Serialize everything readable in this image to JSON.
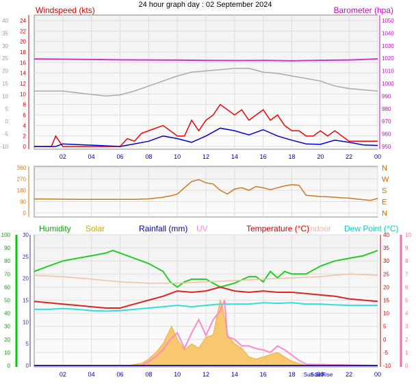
{
  "title": "24 hour graph day : 02 September 2024",
  "chart_data": [
    {
      "type": "line",
      "panel": "wind-baro",
      "labels": {
        "windspeed": "Windspeed (kts)",
        "barometer": "Barometer (hpa)"
      },
      "x_ticks": [
        "02",
        "04",
        "06",
        "08",
        "10",
        "12",
        "14",
        "16",
        "18",
        "20",
        "22",
        "00"
      ],
      "grid": true,
      "axes": {
        "left_outer": {
          "ticks": [
            "-10",
            "-5",
            "0",
            "5",
            "10",
            "15",
            "20",
            "25",
            "30",
            "35",
            "40"
          ],
          "color": "#999999"
        },
        "left_inner": {
          "ticks": [
            "0",
            "2",
            "4",
            "6",
            "8",
            "10",
            "12",
            "14",
            "16",
            "18",
            "20",
            "22",
            "24"
          ],
          "ylim": [
            0,
            24
          ],
          "color": "#cc0000"
        },
        "right": {
          "ticks": [
            "950",
            "960",
            "970",
            "980",
            "990",
            "1000",
            "1010",
            "1020",
            "1030",
            "1040",
            "1050"
          ],
          "ylim": [
            950,
            1050
          ],
          "color": "#cc00cc"
        }
      },
      "series": [
        {
          "key": "barometer",
          "color": "#cc33cc",
          "axis": "right",
          "x": [
            0,
            2,
            4,
            6,
            8,
            10,
            12,
            14,
            16,
            18,
            20,
            22,
            24
          ],
          "y": [
            1019.5,
            1019.3,
            1019.1,
            1018.8,
            1018.7,
            1018.6,
            1018.3,
            1018.2,
            1018.3,
            1018.0,
            1018.4,
            1018.7,
            1019.5
          ]
        },
        {
          "key": "gust-grey",
          "color": "#aaaaaa",
          "axis": "left_outer",
          "x": [
            0,
            2,
            3.5,
            5,
            6,
            7,
            8,
            9,
            10,
            11,
            12,
            13,
            14,
            15,
            16,
            17,
            18,
            19,
            20,
            21,
            22,
            23,
            24
          ],
          "y": [
            12,
            12,
            11,
            10,
            10.5,
            12,
            14,
            16,
            18,
            19.5,
            20,
            20.5,
            21,
            21,
            19.5,
            19,
            18,
            17,
            16,
            14,
            13,
            12.5,
            12
          ]
        },
        {
          "key": "gust-red",
          "color": "#ee0000",
          "axis": "left_inner",
          "x": [
            0,
            1.2,
            1.5,
            2,
            4,
            6,
            6.5,
            7,
            7.5,
            8,
            9,
            10,
            10.5,
            11,
            11.5,
            12,
            12.5,
            13,
            13.5,
            14,
            14.5,
            15,
            15.5,
            16,
            16.5,
            17,
            17.5,
            18,
            18.5,
            19,
            19.5,
            20,
            20.5,
            21,
            21.5,
            22,
            22.5,
            23,
            23.5,
            24
          ],
          "y": [
            0,
            0,
            2,
            0,
            0,
            0,
            1.5,
            1,
            2.5,
            3,
            4,
            2,
            2,
            5,
            3,
            5,
            6,
            8,
            7,
            6,
            7,
            5,
            6,
            7,
            5,
            6,
            4,
            3,
            3,
            2,
            2,
            3,
            2,
            3,
            2,
            1,
            1,
            1,
            1,
            1
          ]
        },
        {
          "key": "windspeed",
          "color": "#0000cc",
          "axis": "left_inner",
          "x": [
            0,
            1.5,
            2,
            6,
            7,
            8,
            9,
            10,
            11,
            12,
            13,
            14,
            15,
            16,
            17,
            18,
            19,
            20,
            21,
            22,
            23,
            24
          ],
          "y": [
            0,
            0,
            0.5,
            0,
            0.5,
            1,
            2,
            1.5,
            0.8,
            2,
            3.5,
            3,
            2.2,
            3.2,
            2,
            1.2,
            0.5,
            0.4,
            1.2,
            0.8,
            0.3,
            0.2
          ]
        }
      ]
    },
    {
      "type": "scatter",
      "panel": "direction",
      "right_labels": [
        "N",
        "W",
        "S",
        "E",
        "N"
      ],
      "y_ticks": [
        "0",
        "90",
        "180",
        "270",
        "360"
      ],
      "ylim": [
        0,
        360
      ],
      "grid": true,
      "series": [
        {
          "key": "direction",
          "color": "#cc7722",
          "x": [
            0,
            1,
            2,
            3,
            4,
            5,
            6,
            7,
            8,
            8.5,
            9,
            9.5,
            10,
            10.5,
            11,
            11.5,
            12,
            12.5,
            13,
            13.5,
            14,
            14.5,
            15,
            15.5,
            16,
            16.5,
            17,
            17.5,
            18,
            18.5,
            19,
            19.5,
            20,
            20.5,
            21,
            21.5,
            22,
            22.5,
            23,
            23.5,
            24
          ],
          "y": [
            110,
            110,
            109,
            108,
            108,
            108,
            108,
            108,
            112,
            118,
            125,
            135,
            150,
            200,
            250,
            265,
            240,
            230,
            180,
            150,
            190,
            200,
            180,
            210,
            200,
            185,
            200,
            215,
            225,
            220,
            140,
            135,
            130,
            128,
            125,
            120,
            118,
            110,
            105,
            100,
            115
          ]
        }
      ]
    },
    {
      "type": "line",
      "panel": "climate",
      "labels": {
        "humidity": "Humidity",
        "solar": "Solar",
        "rainfall": "Rainfall (mm)",
        "uv": "UV",
        "temperature": "Temperature (°C)",
        "indoor": "Indoor",
        "dewpoint": "Dew Point (°C)"
      },
      "marker_labels": [
        "Sun Set",
        "Sun Rise"
      ],
      "x_ticks": [
        "02",
        "04",
        "06",
        "08",
        "10",
        "12",
        "14",
        "16",
        "18",
        "20",
        "22",
        "00"
      ],
      "grid": true,
      "axes": {
        "far_left": {
          "ticks": [
            "0",
            "10",
            "20",
            "30",
            "40",
            "50",
            "60",
            "70",
            "80",
            "90",
            "100"
          ],
          "ylim": [
            0,
            100
          ],
          "color": "#00aa00"
        },
        "left": {
          "ticks": [
            "0",
            "5",
            "10",
            "15",
            "20",
            "25",
            "30"
          ],
          "ylim": [
            0,
            30
          ],
          "color": "#333399"
        },
        "right": {
          "ticks": [
            "-10",
            "-5",
            "0",
            "5",
            "10",
            "15",
            "20",
            "25",
            "30",
            "35",
            "40"
          ],
          "ylim": [
            -10,
            40
          ],
          "color": "#cc0000"
        },
        "far_right": {
          "ticks": [
            "0",
            "1",
            "2",
            "3",
            "4",
            "5",
            "6",
            "7",
            "8",
            "9",
            "10"
          ],
          "ylim": [
            0,
            10
          ],
          "color": "#ff66aa"
        }
      },
      "series": [
        {
          "key": "humidity",
          "color": "#22cc22",
          "axis": "far_left",
          "x": [
            0,
            1,
            2,
            3,
            4,
            5,
            5.5,
            6,
            7,
            8,
            9,
            9.5,
            10,
            10.5,
            11,
            12,
            13,
            14,
            15,
            15.5,
            16,
            16.5,
            17,
            17.5,
            18,
            19,
            20,
            21,
            22,
            23,
            24
          ],
          "y": [
            72,
            76,
            80,
            82,
            84,
            86,
            88,
            86,
            82,
            78,
            72,
            64,
            60,
            64,
            66,
            66,
            60,
            63,
            68,
            68,
            64,
            72,
            67,
            72,
            70,
            70,
            76,
            80,
            82,
            84,
            88
          ]
        },
        {
          "key": "indoor",
          "color": "#f4c0a0",
          "axis": "right",
          "x": [
            0,
            2,
            4,
            6,
            8,
            10,
            12,
            14,
            16,
            18,
            20,
            22,
            24
          ],
          "y": [
            24.5,
            24,
            23,
            22,
            21.5,
            21.5,
            22,
            22.5,
            23,
            23.5,
            24,
            25,
            24.5
          ]
        },
        {
          "key": "temperature",
          "color": "#dd2222",
          "axis": "right",
          "x": [
            0,
            1,
            2,
            3,
            4,
            5,
            6,
            7,
            8,
            9,
            9.5,
            10,
            11,
            12,
            13,
            14,
            15,
            16,
            17,
            18,
            19,
            20,
            21,
            22,
            23,
            24
          ],
          "y": [
            14.5,
            14,
            13.5,
            13,
            12.5,
            12,
            12,
            13.5,
            15,
            16.5,
            17.5,
            18.5,
            18,
            18.5,
            20,
            18.5,
            18,
            18.5,
            18,
            18,
            17.5,
            17,
            16.5,
            15.5,
            15,
            14.5
          ]
        },
        {
          "key": "dewpoint",
          "color": "#33dddd",
          "axis": "right",
          "x": [
            0,
            1,
            2,
            3,
            4,
            5,
            6,
            7,
            8,
            9,
            10,
            11,
            12,
            13,
            14,
            15,
            16,
            17,
            18,
            19,
            20,
            21,
            22,
            23,
            24
          ],
          "y": [
            11.5,
            11.5,
            11.8,
            11.5,
            11,
            10.8,
            11,
            11.5,
            12,
            12.5,
            13,
            12.5,
            13,
            13.5,
            13.5,
            13.5,
            14,
            13.8,
            14,
            13.5,
            13.5,
            13.2,
            13,
            13,
            13
          ]
        },
        {
          "key": "solar",
          "color": "#f0b030",
          "fill": "#f8c870",
          "axis": "left",
          "x": [
            0,
            6.5,
            7.5,
            8,
            8.5,
            9,
            9.3,
            9.6,
            10,
            10.5,
            11,
            11.5,
            12,
            12.5,
            13,
            13.2,
            13.5,
            14,
            14.5,
            15,
            15.5,
            16,
            16.5,
            17,
            17.5,
            18,
            18.5,
            19,
            24
          ],
          "y": [
            0,
            0,
            0.5,
            1.5,
            3,
            5,
            7,
            9,
            6,
            3.5,
            5,
            4,
            6.5,
            7,
            15,
            13,
            7,
            5,
            4,
            2,
            1.5,
            2,
            2.5,
            3,
            2,
            1,
            0.5,
            0,
            0
          ]
        },
        {
          "key": "uv",
          "color": "#ff88cc",
          "axis": "far_right",
          "x": [
            0,
            7.5,
            8,
            8.5,
            9,
            9.5,
            10,
            10.5,
            11,
            11.5,
            12,
            12.5,
            13,
            13.3,
            13.5,
            14,
            14.5,
            15,
            15.5,
            16,
            16.5,
            17,
            17.5,
            18,
            18.5,
            19,
            24
          ],
          "y": [
            0,
            0,
            0.3,
            0.7,
            1.2,
            2,
            2.5,
            1.3,
            2.5,
            3.5,
            2.3,
            3.5,
            4.2,
            5,
            2.2,
            2,
            1.5,
            1.5,
            1.3,
            1.2,
            1,
            1.5,
            1.2,
            0.8,
            0.4,
            0.1,
            0
          ]
        },
        {
          "key": "rainfall",
          "color": "#222299",
          "axis": "left",
          "x": [
            0,
            24
          ],
          "y": [
            0,
            0
          ]
        }
      ]
    }
  ]
}
